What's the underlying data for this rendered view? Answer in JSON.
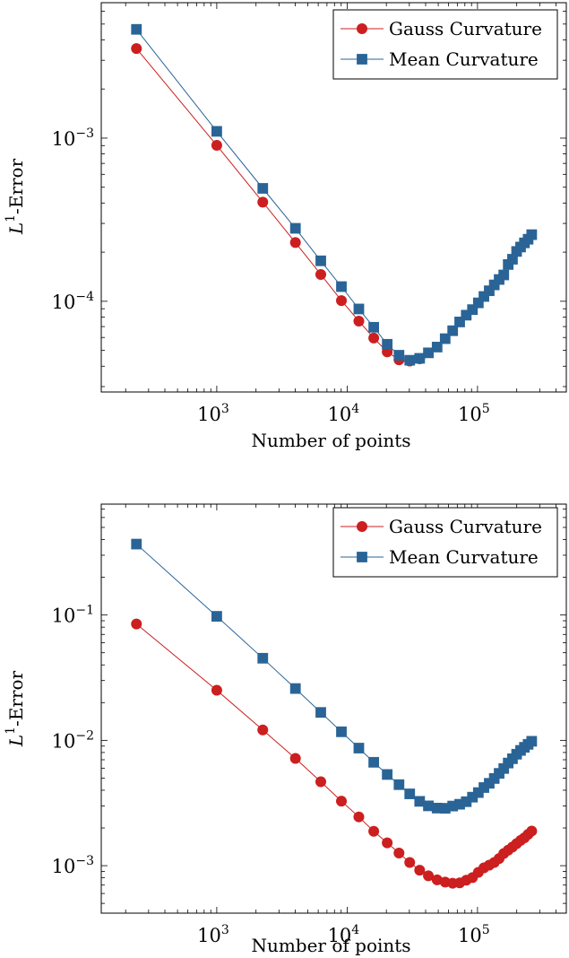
{
  "chart_data": [
    {
      "type": "line",
      "xscale": "log",
      "yscale": "log",
      "xlabel": "Number of points",
      "ylabel": "L^1-Error",
      "ylabel_parts": {
        "base": "L",
        "sup": "1",
        "rest": "-Error"
      },
      "xlim": [
        130,
        480000
      ],
      "ylim": [
        2.78e-05,
        0.00676
      ],
      "xticks": [
        {
          "value": 1000,
          "base": "10",
          "exp": "3"
        },
        {
          "value": 10000,
          "base": "10",
          "exp": "4"
        },
        {
          "value": 100000,
          "base": "10",
          "exp": "5"
        }
      ],
      "yticks": [
        {
          "value": 0.001,
          "base": "10",
          "exp": "−3"
        },
        {
          "value": 0.0001,
          "base": "10",
          "exp": "−4"
        }
      ],
      "legend_position": "top-right",
      "series": [
        {
          "name": "Gauss Curvature",
          "color": "#cc1f1f",
          "marker": "circle",
          "x": [
            242,
            1000,
            2254,
            4012,
            6280,
            9040,
            12300,
            16000,
            20300,
            25000,
            30200,
            36000
          ],
          "y": [
            0.00354,
            0.000903,
            0.000405,
            0.000229,
            0.000146,
            0.000101,
            7.56e-05,
            5.95e-05,
            4.9e-05,
            4.38e-05,
            4.3e-05,
            4.44e-05
          ]
        },
        {
          "name": "Mean Curvature",
          "color": "#2a6496",
          "marker": "square",
          "x": [
            242,
            1000,
            2254,
            4012,
            6280,
            9040,
            12300,
            16000,
            20300,
            25000,
            30200,
            36000,
            42000,
            49000,
            56500,
            64500,
            73000,
            82000,
            91500,
            101500,
            112000,
            123000,
            134500,
            146500,
            159000,
            172000,
            185500,
            199500,
            214000,
            229000,
            244500,
            260500
          ],
          "y": [
            0.00464,
            0.0011,
            0.000492,
            0.00028,
            0.000177,
            0.000123,
            8.97e-05,
            6.93e-05,
            5.45e-05,
            4.67e-05,
            4.35e-05,
            4.47e-05,
            4.83e-05,
            5.24e-05,
            5.9e-05,
            6.6e-05,
            7.47e-05,
            8.22e-05,
            8.89e-05,
            9.78e-05,
            0.000107,
            0.000116,
            0.000126,
            0.000136,
            0.000145,
            0.000168,
            0.000181,
            0.000202,
            0.000215,
            0.000228,
            0.00024,
            0.000256
          ]
        }
      ]
    },
    {
      "type": "line",
      "xscale": "log",
      "yscale": "log",
      "xlabel": "Number of points",
      "ylabel": "L^1-Error",
      "ylabel_parts": {
        "base": "L",
        "sup": "1",
        "rest": "-Error"
      },
      "xlim": [
        130,
        480000
      ],
      "ylim": [
        0.000418,
        0.767
      ],
      "xticks": [
        {
          "value": 1000,
          "base": "10",
          "exp": "3"
        },
        {
          "value": 10000,
          "base": "10",
          "exp": "4"
        },
        {
          "value": 100000,
          "base": "10",
          "exp": "5"
        }
      ],
      "yticks": [
        {
          "value": 0.1,
          "base": "10",
          "exp": "−1"
        },
        {
          "value": 0.01,
          "base": "10",
          "exp": "−2"
        },
        {
          "value": 0.001,
          "base": "10",
          "exp": "−3"
        }
      ],
      "legend_position": "top-right",
      "series": [
        {
          "name": "Gauss Curvature",
          "color": "#cc1f1f",
          "marker": "circle",
          "x": [
            242,
            1000,
            2254,
            4012,
            6280,
            9040,
            12300,
            16000,
            20300,
            25000,
            30200,
            36000,
            42000,
            49000,
            56500,
            64500,
            73000,
            82000,
            91500,
            101500,
            112000,
            123000,
            134500,
            146500,
            159000,
            172000,
            185500,
            199500,
            214000,
            229000,
            244500,
            260500
          ],
          "y": [
            0.0848,
            0.0251,
            0.0121,
            0.00718,
            0.00467,
            0.00327,
            0.00245,
            0.00188,
            0.00152,
            0.00126,
            0.00106,
            0.00092,
            0.00083,
            0.00077,
            0.000739,
            0.000725,
            0.000729,
            0.000766,
            0.000803,
            0.000884,
            0.00096,
            0.00101,
            0.00106,
            0.00114,
            0.00125,
            0.00133,
            0.00141,
            0.0015,
            0.00159,
            0.00167,
            0.00178,
            0.00189
          ]
        },
        {
          "name": "Mean Curvature",
          "color": "#2a6496",
          "marker": "square",
          "x": [
            242,
            1000,
            2254,
            4012,
            6280,
            9040,
            12300,
            16000,
            20300,
            25000,
            30200,
            36000,
            42000,
            49000,
            56500,
            64500,
            73000,
            82000,
            91500,
            101500,
            112000,
            123000,
            134500,
            146500,
            159000,
            172000,
            185500,
            199500,
            214000,
            229000,
            244500,
            260500
          ],
          "y": [
            0.368,
            0.0976,
            0.0452,
            0.0259,
            0.0167,
            0.0117,
            0.00867,
            0.00668,
            0.00534,
            0.00443,
            0.00374,
            0.00326,
            0.003,
            0.00288,
            0.00287,
            0.00299,
            0.00309,
            0.00324,
            0.00352,
            0.00383,
            0.0042,
            0.00454,
            0.00496,
            0.00545,
            0.00596,
            0.00659,
            0.00713,
            0.00775,
            0.00831,
            0.0088,
            0.00929,
            0.00983
          ]
        }
      ]
    }
  ]
}
